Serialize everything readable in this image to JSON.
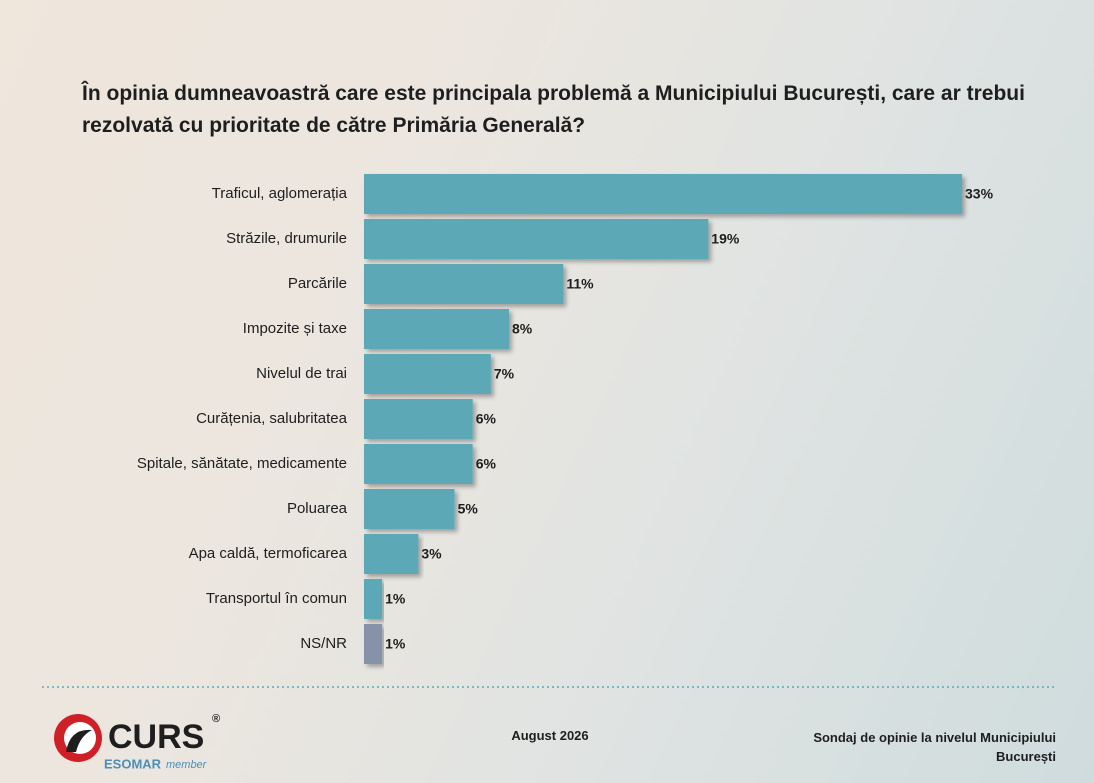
{
  "chart_data": {
    "type": "bar",
    "orientation": "horizontal",
    "title": "În opinia dumneavoastră care este principala problemă a Municipiului București, care ar trebui rezolvată cu prioritate de către Primăria Generală?",
    "categories": [
      "Traficul, aglomerația",
      "Străzile, drumurile",
      "Parcările",
      "Impozite și taxe",
      "Nivelul de trai",
      "Curățenia, salubritatea",
      "Spitale, sănătate, medicamente",
      "Poluarea",
      "Apa caldă, termoficarea",
      "Transportul în comun",
      "NS/NR"
    ],
    "values": [
      33,
      19,
      11,
      8,
      7,
      6,
      6,
      5,
      3,
      1,
      1
    ],
    "value_labels": [
      "33%",
      "19%",
      "11%",
      "8%",
      "7%",
      "6%",
      "6%",
      "5%",
      "3%",
      "1%",
      "1%"
    ],
    "colors": [
      "#5ba8b6",
      "#5ba8b6",
      "#5ba8b6",
      "#5ba8b6",
      "#5ba8b6",
      "#5ba8b6",
      "#5ba8b6",
      "#5ba8b6",
      "#5ba8b6",
      "#5ba8b6",
      "#8592a8"
    ]
  },
  "footer": {
    "date": "August 2026",
    "source": "Sondaj de opinie la nivelul Municipiului București"
  },
  "logo": {
    "name": "CURS",
    "mark": "®",
    "affiliation": "ESOMAR",
    "affiliation_note": "member"
  }
}
